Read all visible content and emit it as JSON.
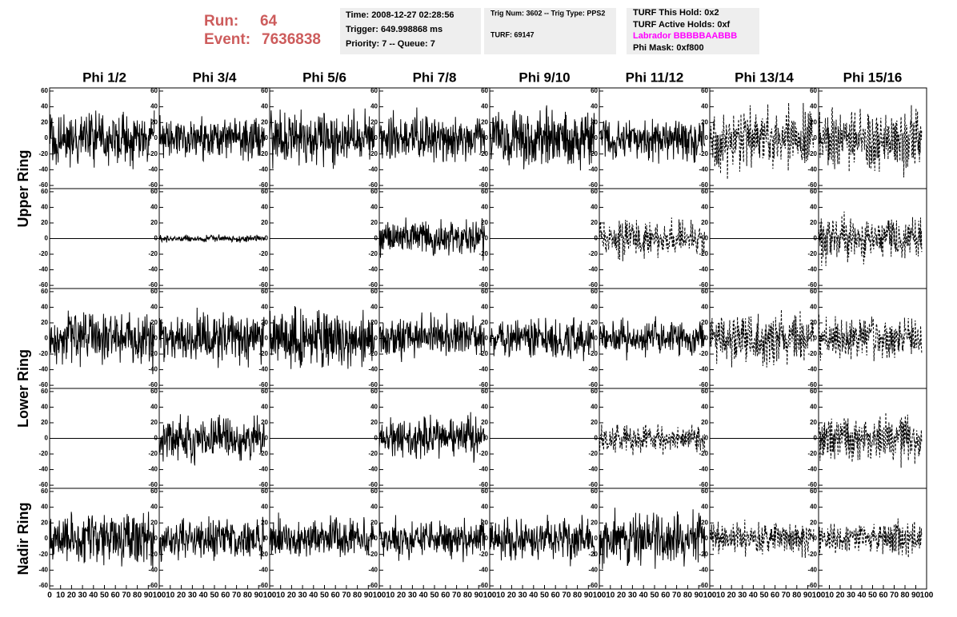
{
  "header": {
    "run_label": "Run:",
    "run": "64",
    "event_label": "Event:",
    "event": "7636838"
  },
  "info": [
    [
      "Time: 2008-12-27 02:28:56",
      "Trigger: 649.998868 ms",
      "Priority: 7 -- Queue: 7"
    ],
    [
      "Trig Num: 3602 -- Trig Type: PPS2",
      "TURF: 69147"
    ],
    [
      "TURF This Hold: 0x2",
      "TURF Active Holds: 0xf",
      "Labrador BBBBBAABBB",
      "Phi Mask: 0xf800"
    ]
  ],
  "columns": [
    "Phi 1/2",
    "Phi 3/4",
    "Phi 5/6",
    "Phi 7/8",
    "Phi 9/10",
    "Phi 11/12",
    "Phi 13/14",
    "Phi 15/16"
  ],
  "rows": [
    "Upper Ring",
    "Lower Ring",
    "Nadir Ring"
  ],
  "axes": {
    "ylim": [
      -64,
      64
    ],
    "yticks": [
      60,
      40,
      20,
      0,
      -20,
      -40,
      -60
    ],
    "xlim": [
      0,
      100
    ],
    "xticks": [
      0,
      10,
      20,
      30,
      40,
      50,
      60,
      70,
      80,
      90,
      100
    ]
  }
}
